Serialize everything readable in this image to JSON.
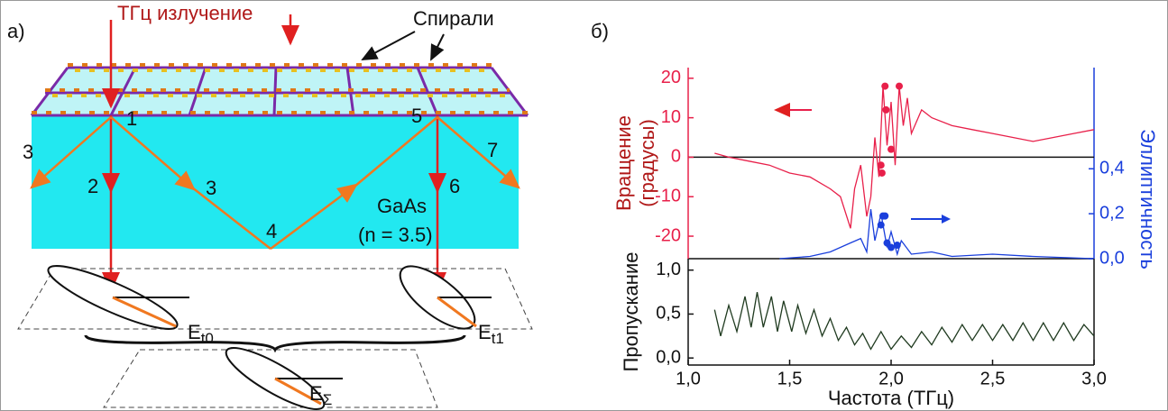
{
  "diagram": {
    "panel_label": "а)",
    "source": "ТГц излучение",
    "helix_label": "Спирали",
    "points": [
      "1",
      "2",
      "3",
      "3",
      "4",
      "5",
      "6",
      "7"
    ],
    "material": "GaAs",
    "index": "(n = 3.5)",
    "ellipses": [
      {
        "label": "E",
        "sub": "t0"
      },
      {
        "label": "E",
        "sub": "t1"
      },
      {
        "label": "E",
        "sub": "Σ"
      }
    ]
  },
  "panel_label_b": "б)",
  "chart_data": [
    {
      "type": "line",
      "ylabel": [
        "Вращение",
        "(градусы)"
      ],
      "ycolor": "#e8204a",
      "y2label": "Эллиптичность",
      "y2color": "#1a3fdc",
      "xlim": [
        1.0,
        3.0
      ],
      "ylim": [
        -25.7,
        22.7
      ],
      "yticks": [
        -20,
        -10,
        0,
        10,
        20
      ],
      "y2lim": [
        0,
        0.85
      ],
      "y2ticks": [
        {
          "value": 0,
          "label": "0,0"
        },
        {
          "value": 0.2,
          "label": "0,2"
        },
        {
          "value": 0.4,
          "label": "0,4"
        }
      ],
      "reference_line": 0,
      "series": [
        {
          "style": "line",
          "color": "#e8204a",
          "x": [
            1.13,
            1.2,
            1.3,
            1.4,
            1.5,
            1.6,
            1.7,
            1.75,
            1.8,
            1.82,
            1.85,
            1.88,
            1.9,
            1.92,
            1.94,
            1.96,
            1.98,
            2.0,
            2.02,
            2.04,
            2.06,
            2.08,
            2.1,
            2.15,
            2.2,
            2.3,
            2.4,
            2.5,
            2.6,
            2.7,
            2.8,
            2.9,
            3.0
          ],
          "values": [
            1,
            0,
            -1,
            -2,
            -4,
            -5,
            -8,
            -10,
            -18,
            -8,
            -2,
            -15,
            -10,
            5,
            -5,
            18,
            3,
            14,
            -2,
            18,
            8,
            15,
            6,
            12,
            10,
            8,
            7,
            6,
            5,
            4,
            5,
            6,
            7
          ]
        },
        {
          "style": "markers",
          "color": "#e8204a",
          "x": [
            1.95,
            1.955,
            1.97,
            1.975,
            2.0,
            2.04
          ],
          "values": [
            -2,
            -4,
            18,
            12,
            2,
            18
          ]
        },
        {
          "style": "line",
          "color": "#1a3fdc",
          "axis": "y2",
          "x": [
            1.45,
            1.6,
            1.7,
            1.8,
            1.85,
            1.88,
            1.9,
            1.92,
            1.95,
            1.98,
            2.0,
            2.03,
            2.05,
            2.1,
            2.2,
            2.3,
            2.5,
            2.7,
            3.0
          ],
          "values": [
            0,
            0.01,
            0.03,
            0.07,
            0.09,
            0.03,
            0.22,
            0.08,
            0.2,
            0.05,
            0.12,
            0.02,
            0.08,
            0.02,
            0.03,
            0.01,
            0.02,
            0.01,
            0
          ]
        },
        {
          "style": "markers",
          "color": "#1a3fdc",
          "axis": "y2",
          "x": [
            1.95,
            1.96,
            1.97,
            1.98,
            2.0,
            2.03
          ],
          "values": [
            0.15,
            0.19,
            0.19,
            0.07,
            0.05,
            0.06
          ]
        }
      ]
    },
    {
      "type": "line",
      "ylabel": "Пропускание",
      "xlabel": "Частота (ТГц)",
      "xlim": [
        1.0,
        3.0
      ],
      "ylim": [
        -0.08,
        1.13
      ],
      "xticks": [
        {
          "value": 1.0,
          "label": "1,0"
        },
        {
          "value": 1.5,
          "label": "1,5"
        },
        {
          "value": 2.0,
          "label": "2,0"
        },
        {
          "value": 2.5,
          "label": "2,5"
        },
        {
          "value": 3.0,
          "label": "3,0"
        }
      ],
      "yticks": [
        {
          "value": 0,
          "label": "0,0"
        },
        {
          "value": 0.5,
          "label": "0,5"
        },
        {
          "value": 1.0,
          "label": "1,0"
        }
      ],
      "series": [
        {
          "style": "line",
          "color": "#1f3a1f",
          "x": [
            1.13,
            1.16,
            1.2,
            1.24,
            1.28,
            1.31,
            1.34,
            1.37,
            1.41,
            1.44,
            1.47,
            1.51,
            1.54,
            1.58,
            1.62,
            1.66,
            1.7,
            1.74,
            1.78,
            1.82,
            1.86,
            1.9,
            1.95,
            2.0,
            2.05,
            2.1,
            2.15,
            2.2,
            2.25,
            2.3,
            2.35,
            2.4,
            2.45,
            2.5,
            2.55,
            2.6,
            2.65,
            2.7,
            2.75,
            2.8,
            2.85,
            2.9,
            2.95,
            3.0
          ],
          "values": [
            0.55,
            0.25,
            0.6,
            0.3,
            0.7,
            0.35,
            0.75,
            0.35,
            0.7,
            0.3,
            0.65,
            0.3,
            0.6,
            0.28,
            0.55,
            0.25,
            0.45,
            0.2,
            0.35,
            0.15,
            0.28,
            0.1,
            0.3,
            0.1,
            0.25,
            0.12,
            0.3,
            0.15,
            0.35,
            0.18,
            0.38,
            0.2,
            0.38,
            0.2,
            0.38,
            0.2,
            0.4,
            0.2,
            0.4,
            0.2,
            0.4,
            0.2,
            0.38,
            0.25
          ]
        }
      ]
    }
  ]
}
